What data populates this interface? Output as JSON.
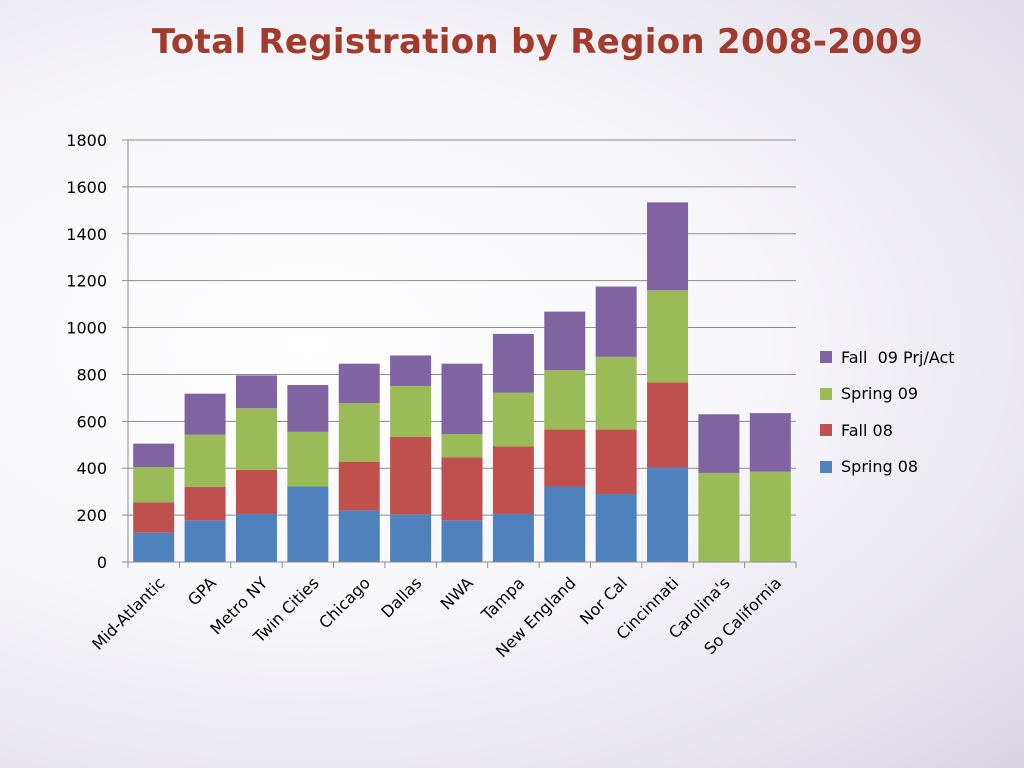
{
  "chart_data": {
    "type": "bar",
    "stacked": true,
    "title": "Total Registration by Region 2008-2009",
    "xlabel": "",
    "ylabel": "",
    "ylim": [
      0,
      1800
    ],
    "yticks": [
      0,
      200,
      400,
      600,
      800,
      1000,
      1200,
      1400,
      1600,
      1800
    ],
    "grid": true,
    "legend_position": "right",
    "categories": [
      "Mid-Atlantic",
      "GPA",
      "Metro NY",
      "Twin Cities",
      "Chicago",
      "Dallas",
      "NWA",
      "Tampa",
      "New England",
      "Nor Cal",
      "Cincinnati",
      "Carolina's",
      "So California"
    ],
    "series": [
      {
        "name": "Spring 08",
        "color": "#4f81bd",
        "values": [
          125,
          178,
          205,
          322,
          220,
          203,
          178,
          205,
          322,
          290,
          403,
          0,
          0
        ]
      },
      {
        "name": "Fall 08",
        "color": "#c0504d",
        "values": [
          130,
          143,
          188,
          0,
          208,
          330,
          268,
          288,
          243,
          275,
          363,
          0,
          0
        ]
      },
      {
        "name": "Spring 09",
        "color": "#9bbb59",
        "values": [
          150,
          222,
          263,
          233,
          250,
          218,
          100,
          230,
          253,
          310,
          393,
          380,
          385
        ]
      },
      {
        "name": "Fall  09 Prj/Act",
        "color": "#8064a2",
        "values": [
          100,
          175,
          140,
          200,
          168,
          130,
          300,
          250,
          250,
          300,
          375,
          250,
          250
        ]
      }
    ]
  }
}
